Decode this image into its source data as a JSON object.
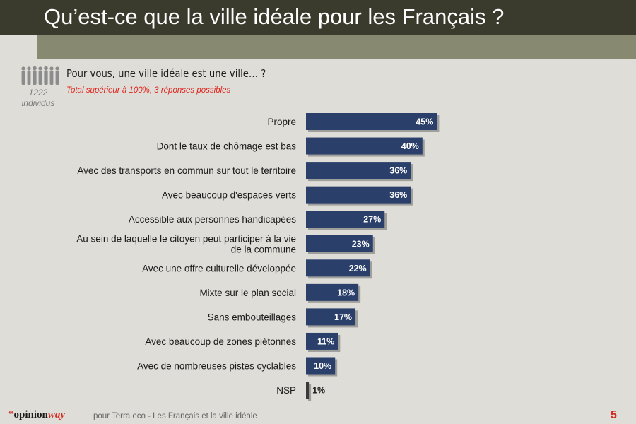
{
  "slide": {
    "title": "Qu’est-ce que la ville idéale pour les Français ?",
    "question": "Pour vous, une ville idéale est une ville… ?",
    "note": "Total supérieur à 100%, 3 réponses possibles",
    "sample_count": "1222",
    "sample_unit": "individus"
  },
  "footer": {
    "logo_quote": "“",
    "logo_main": "opinion",
    "logo_accent": "way",
    "text": "pour Terra eco - Les Français et la ville idéale",
    "page_number": "5"
  },
  "colors": {
    "bar": "#2b3f6b",
    "bar_shadow": "#6a6a6a",
    "bar_label": "#ffffff",
    "small_bar": "#3a3a3a"
  },
  "chart_data": {
    "type": "bar",
    "orientation": "horizontal",
    "categories": [
      "Propre",
      "Dont le taux de chômage est bas",
      "Avec des transports en commun sur tout le territoire",
      "Avec beaucoup d'espaces verts",
      "Accessible aux personnes handicapées",
      "Au sein de laquelle le citoyen peut participer à la vie de la commune",
      "Avec une offre culturelle développée",
      "Mixte sur le plan social",
      "Sans embouteillages",
      "Avec beaucoup de zones piétonnes",
      "Avec de nombreuses pistes cyclables",
      "NSP"
    ],
    "category_lines": [
      [
        "Propre"
      ],
      [
        "Dont le taux de chômage est bas"
      ],
      [
        "Avec des transports en commun sur tout le territoire"
      ],
      [
        "Avec beaucoup d'espaces verts"
      ],
      [
        "Accessible aux personnes handicapées"
      ],
      [
        "Au sein de laquelle le citoyen peut participer à la vie",
        "de la commune"
      ],
      [
        "Avec une offre culturelle développée"
      ],
      [
        "Mixte sur le plan social"
      ],
      [
        "Sans embouteillages"
      ],
      [
        "Avec beaucoup de zones piétonnes"
      ],
      [
        "Avec de nombreuses pistes cyclables"
      ],
      [
        "NSP"
      ]
    ],
    "values": [
      45,
      40,
      36,
      36,
      27,
      23,
      22,
      18,
      17,
      11,
      10,
      1
    ],
    "labels": [
      "45%",
      "40%",
      "36%",
      "36%",
      "27%",
      "23%",
      "22%",
      "18%",
      "17%",
      "11%",
      "10%",
      "1%"
    ],
    "xlim": [
      0,
      100
    ],
    "grid": false,
    "legend": "none"
  }
}
